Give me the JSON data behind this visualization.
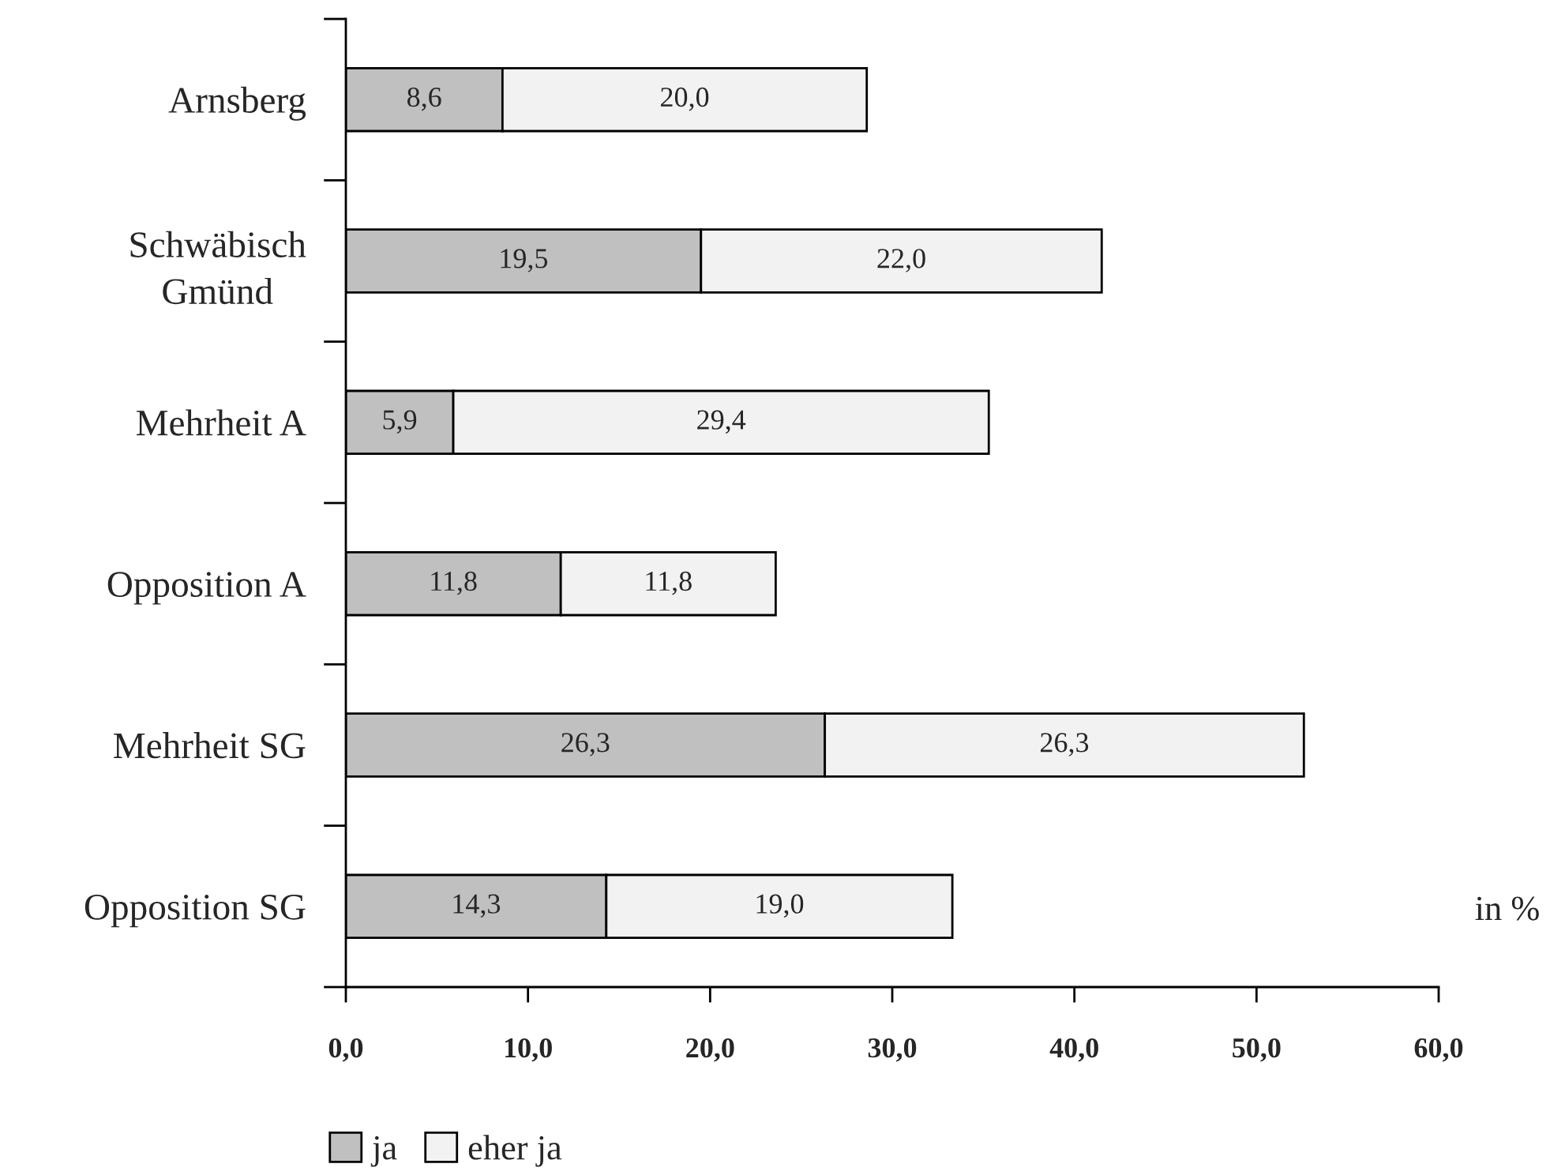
{
  "chart_data": {
    "type": "bar",
    "orientation": "horizontal",
    "stacked": true,
    "categories": [
      "Arnsberg",
      "Schwäbisch\nGmünd",
      "Mehrheit A",
      "Opposition A",
      "Mehrheit SG",
      "Opposition SG"
    ],
    "series": [
      {
        "name": "ja",
        "color": "#c0c0c0",
        "values": [
          8.6,
          19.5,
          5.9,
          11.8,
          26.3,
          14.3
        ],
        "value_labels": [
          "8,6",
          "19,5",
          "5,9",
          "11,8",
          "26,3",
          "14,3"
        ]
      },
      {
        "name": "eher ja",
        "color": "#f2f2f2",
        "values": [
          20.0,
          22.0,
          29.4,
          11.8,
          26.3,
          19.0
        ],
        "value_labels": [
          "20,0",
          "22,0",
          "29,4",
          "11,8",
          "26,3",
          "19,0"
        ]
      }
    ],
    "xlabel": "in %",
    "xlim": [
      0,
      60
    ],
    "xticks": [
      {
        "value": 0,
        "label": "0,0"
      },
      {
        "value": 10,
        "label": "10,0"
      },
      {
        "value": 20,
        "label": "20,0"
      },
      {
        "value": 30,
        "label": "30,0"
      },
      {
        "value": 40,
        "label": "40,0"
      },
      {
        "value": 50,
        "label": "50,0"
      },
      {
        "value": 60,
        "label": "60,0"
      }
    ],
    "legend": "bottom"
  }
}
